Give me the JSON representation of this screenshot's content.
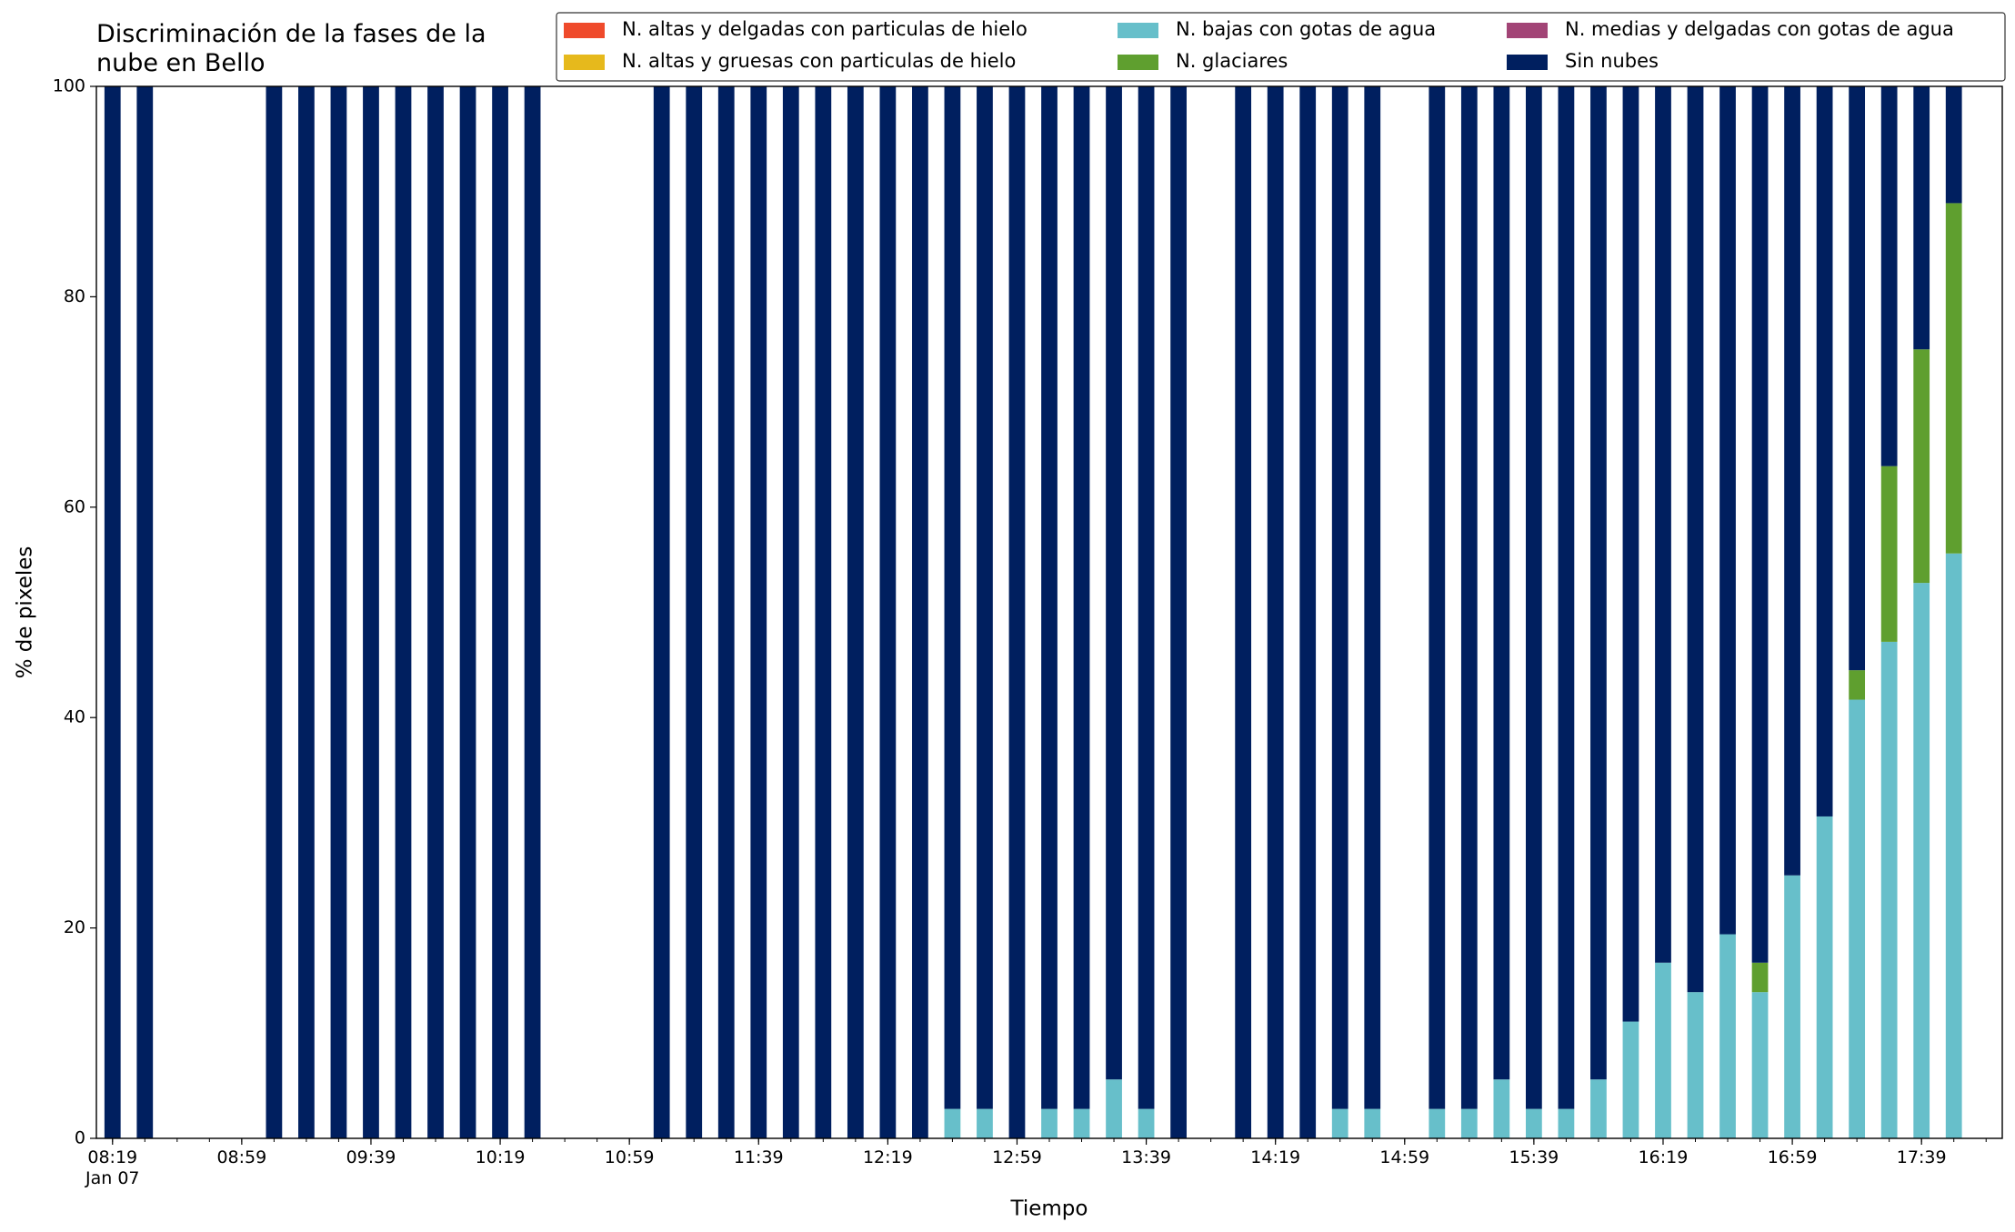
{
  "chart_data": {
    "type": "bar",
    "stacked": true,
    "title": "Discriminación de la fases de la\nnube en Bello",
    "xlabel": "Tiempo",
    "ylabel": "% de pixeles",
    "x": [
      "08:19",
      "08:29",
      "09:09",
      "09:19",
      "09:29",
      "09:39",
      "09:49",
      "09:59",
      "10:09",
      "10:19",
      "10:29",
      "11:09",
      "11:19",
      "11:29",
      "11:39",
      "11:49",
      "11:59",
      "12:09",
      "12:19",
      "12:29",
      "12:39",
      "12:49",
      "12:59",
      "13:09",
      "13:19",
      "13:29",
      "13:39",
      "13:49",
      "14:09",
      "14:19",
      "14:29",
      "14:39",
      "14:49",
      "15:09",
      "15:19",
      "15:29",
      "15:39",
      "15:49",
      "15:59",
      "16:09",
      "16:19",
      "16:29",
      "16:39",
      "16:49",
      "16:59",
      "17:09",
      "17:19",
      "17:29",
      "17:39",
      "17:49"
    ],
    "series": [
      {
        "name": "N. altas y delgadas con particulas de hielo",
        "color": "#ef4a2b",
        "values": [
          0,
          0,
          0,
          0,
          0,
          0,
          0,
          0,
          0,
          0,
          0,
          0,
          0,
          0,
          0,
          0,
          0,
          0,
          0,
          0,
          0,
          0,
          0,
          0,
          0,
          0,
          0,
          0,
          0,
          0,
          0,
          0,
          0,
          0,
          0,
          0,
          0,
          0,
          0,
          0,
          0,
          0,
          0,
          0,
          0,
          0,
          0,
          0,
          0,
          0
        ]
      },
      {
        "name": "N. altas y gruesas con particulas de hielo",
        "color": "#e6b91c",
        "values": [
          0,
          0,
          0,
          0,
          0,
          0,
          0,
          0,
          0,
          0,
          0,
          0,
          0,
          0,
          0,
          0,
          0,
          0,
          0,
          0,
          0,
          0,
          0,
          0,
          0,
          0,
          0,
          0,
          0,
          0,
          0,
          0,
          0,
          0,
          0,
          0,
          0,
          0,
          0,
          0,
          0,
          0,
          0,
          0,
          0,
          0,
          0,
          0,
          0,
          0
        ]
      },
      {
        "name": "N. bajas con gotas de agua",
        "color": "#67bfca",
        "values": [
          0,
          0,
          0,
          0,
          0,
          0,
          0,
          0,
          0,
          0,
          0,
          0,
          0,
          0,
          0,
          0,
          0,
          0,
          0,
          0,
          2.8,
          2.8,
          0,
          2.8,
          2.8,
          5.6,
          2.8,
          0,
          0,
          0,
          0,
          2.8,
          2.8,
          2.8,
          2.8,
          5.6,
          2.8,
          2.8,
          5.6,
          11.1,
          16.7,
          13.9,
          19.4,
          13.9,
          25,
          30.6,
          41.7,
          47.2,
          52.8,
          55.6
        ]
      },
      {
        "name": "N. glaciares",
        "color": "#5f9f2f",
        "values": [
          0,
          0,
          0,
          0,
          0,
          0,
          0,
          0,
          0,
          0,
          0,
          0,
          0,
          0,
          0,
          0,
          0,
          0,
          0,
          0,
          0,
          0,
          0,
          0,
          0,
          0,
          0,
          0,
          0,
          0,
          0,
          0,
          0,
          0,
          0,
          0,
          0,
          0,
          0,
          0,
          0,
          0,
          0,
          2.8,
          0,
          0,
          2.8,
          16.7,
          22.2,
          33.3
        ]
      },
      {
        "name": "N. medias y delgadas con gotas de agua",
        "color": "#a24476",
        "values": [
          0,
          0,
          0,
          0,
          0,
          0,
          0,
          0,
          0,
          0,
          0,
          0,
          0,
          0,
          0,
          0,
          0,
          0,
          0,
          0,
          0,
          0,
          0,
          0,
          0,
          0,
          0,
          0,
          0,
          0,
          0,
          0,
          0,
          0,
          0,
          0,
          0,
          0,
          0,
          0,
          0,
          0,
          0,
          0,
          0,
          0,
          0,
          0,
          0,
          0
        ]
      },
      {
        "name": "Sin nubes",
        "color": "#001f5f",
        "values": [
          100,
          100,
          100,
          100,
          100,
          100,
          100,
          100,
          100,
          100,
          100,
          100,
          100,
          100,
          100,
          100,
          100,
          100,
          100,
          100,
          97.2,
          97.2,
          100,
          97.2,
          97.2,
          94.4,
          97.2,
          100,
          100,
          100,
          100,
          97.2,
          97.2,
          97.2,
          97.2,
          94.4,
          97.2,
          97.2,
          94.4,
          88.9,
          83.3,
          86.1,
          80.6,
          83.3,
          75,
          69.4,
          55.5,
          36.1,
          25,
          11.1
        ]
      }
    ],
    "xlim": [
      "08:14",
      "18:04"
    ],
    "xticks": [
      {
        "value": "08:19",
        "label": "08:19\nJan 07"
      },
      "08:59",
      "09:39",
      "10:19",
      "10:59",
      "11:39",
      "12:19",
      "12:59",
      "13:39",
      "14:19",
      "14:59",
      "15:39",
      "16:19",
      "16:59",
      "17:39"
    ],
    "xminorticks": [
      "08:19",
      "08:29",
      "08:39",
      "08:49",
      "08:59",
      "09:09",
      "09:19",
      "09:29",
      "09:39",
      "09:49",
      "09:59",
      "10:09",
      "10:19",
      "10:29",
      "10:39",
      "10:49",
      "10:59",
      "11:09",
      "11:19",
      "11:29",
      "11:39",
      "11:49",
      "11:59",
      "12:09",
      "12:19",
      "12:29",
      "12:39",
      "12:49",
      "12:59",
      "13:09",
      "13:19",
      "13:29",
      "13:39",
      "13:49",
      "13:59",
      "14:09",
      "14:19",
      "14:29",
      "14:39",
      "14:49",
      "14:59",
      "15:09",
      "15:19",
      "15:29",
      "15:39",
      "15:49",
      "15:59",
      "16:09",
      "16:19",
      "16:29",
      "16:39",
      "16:49",
      "16:59",
      "17:09",
      "17:19",
      "17:29",
      "17:39",
      "17:49",
      "17:59"
    ],
    "ylim": [
      0,
      100
    ],
    "yticks": [
      0,
      20,
      40,
      60,
      80,
      100
    ],
    "legend": "upper right"
  }
}
